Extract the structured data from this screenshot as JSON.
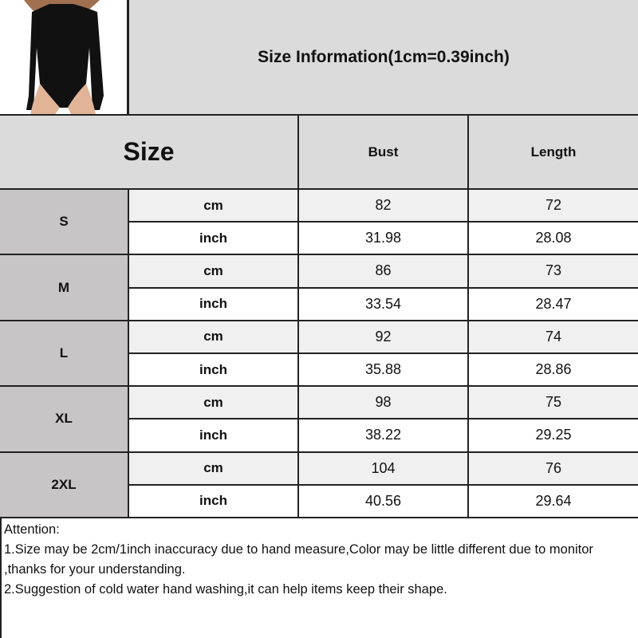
{
  "title": "Size Information(1cm=0.39inch)",
  "headers": {
    "size": "Size",
    "bust": "Bust",
    "length": "Length"
  },
  "rows": [
    {
      "size": "S",
      "cm": {
        "unit": "cm",
        "bust": "82",
        "length": "72"
      },
      "inch": {
        "unit": "inch",
        "bust": "31.98",
        "length": "28.08"
      }
    },
    {
      "size": "M",
      "cm": {
        "unit": "cm",
        "bust": "86",
        "length": "73"
      },
      "inch": {
        "unit": "inch",
        "bust": "33.54",
        "length": "28.47"
      }
    },
    {
      "size": "L",
      "cm": {
        "unit": "cm",
        "bust": "92",
        "length": "74"
      },
      "inch": {
        "unit": "inch",
        "bust": "35.88",
        "length": "28.86"
      }
    },
    {
      "size": "XL",
      "cm": {
        "unit": "cm",
        "bust": "98",
        "length": "75"
      },
      "inch": {
        "unit": "inch",
        "bust": "38.22",
        "length": "29.25"
      }
    },
    {
      "size": "2XL",
      "cm": {
        "unit": "cm",
        "bust": "104",
        "length": "76"
      },
      "inch": {
        "unit": "inch",
        "bust": "40.56",
        "length": "29.64"
      }
    }
  ],
  "notes": [
    "Attention:",
    "1.Size may be 2cm/1inch inaccuracy due to hand measure,Color may be little different due to monitor ,thanks for your understanding.",
    "2.Suggestion of cold water hand washing,it can help items keep their shape."
  ]
}
